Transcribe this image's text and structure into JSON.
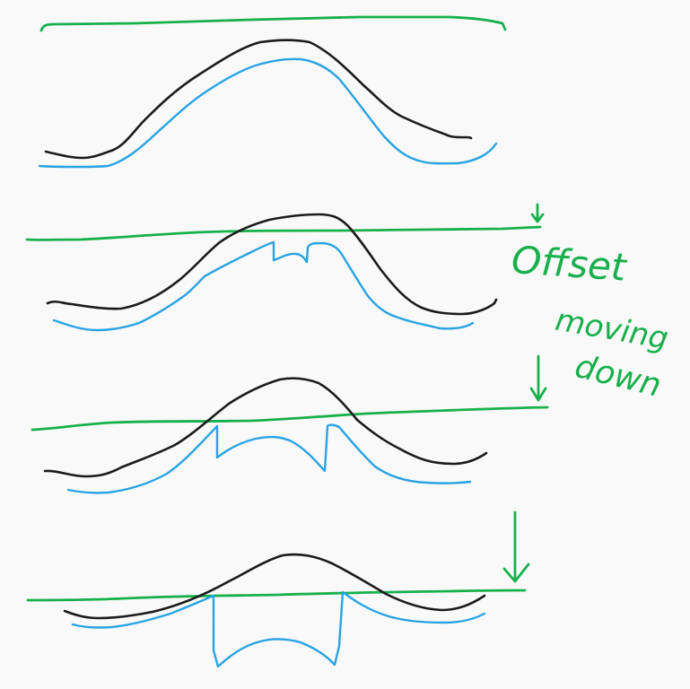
{
  "colors": {
    "background": "#f9f9f9",
    "original_curve": "#1b1b1b",
    "offset_curve": "#29a3e3",
    "offset_line": "#18b04c"
  },
  "annotation": {
    "line1": "Offset",
    "line2": "moving",
    "line3": "down"
  },
  "panels": [
    {
      "name": "panel-1",
      "arrow": false
    },
    {
      "name": "panel-2",
      "arrow": true
    },
    {
      "name": "panel-3",
      "arrow": true
    },
    {
      "name": "panel-4",
      "arrow": true
    }
  ]
}
